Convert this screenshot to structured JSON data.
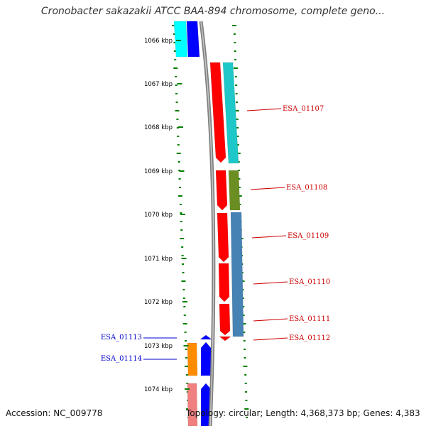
{
  "title": "Cronobacter sakazakii ATCC BAA-894 chromosome, complete geno...",
  "footer": {
    "accession": "Accession: NC_009778",
    "topology": "Topology: circular; Length: 4,368,373 bp; Genes: 4,383"
  },
  "ticks": [
    "1066 kbp",
    "1067 kbp",
    "1068 kbp",
    "1069 kbp",
    "1070 kbp",
    "1071 kbp",
    "1072 kbp",
    "1073 kbp",
    "1074 kbp"
  ],
  "genes": {
    "forward": [
      "ESA_01107",
      "ESA_01108",
      "ESA_01109",
      "ESA_01110",
      "ESA_01111",
      "ESA_01112"
    ],
    "reverse": [
      "ESA_01113",
      "ESA_01114"
    ]
  },
  "colors": {
    "red": "#ff0000",
    "teal": "#1ec8c8",
    "olive": "#6b8e23",
    "steel": "#4682b4",
    "blue": "#0000ff",
    "cyan": "#00ffff",
    "orange": "#ff8c00",
    "pink": "#f08080",
    "backbone": "#808080",
    "grid": "#008000",
    "label_forward": "#cc0000",
    "label_reverse": "#0000cc"
  }
}
